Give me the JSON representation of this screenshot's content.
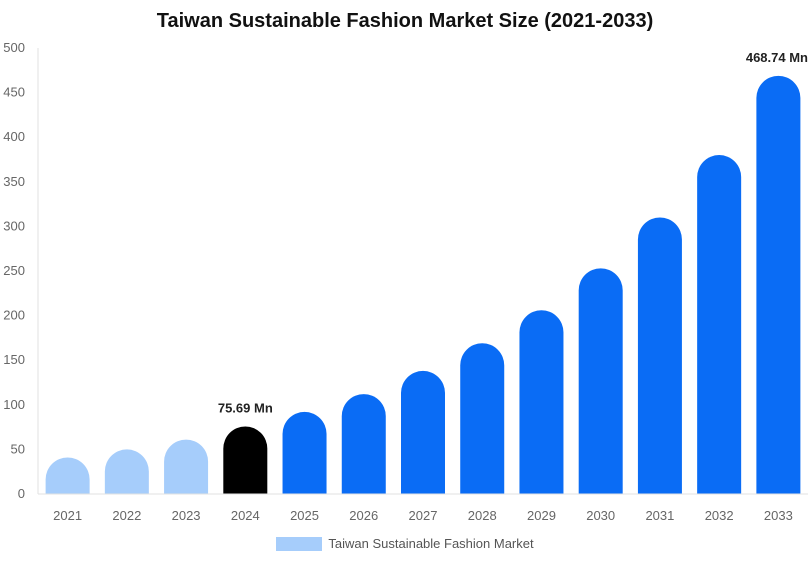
{
  "chart_data": {
    "type": "bar",
    "title": "Taiwan Sustainable Fashion Market Size (2021-2033)",
    "categories": [
      "2021",
      "2022",
      "2023",
      "2024",
      "2025",
      "2026",
      "2027",
      "2028",
      "2029",
      "2030",
      "2031",
      "2032",
      "2033"
    ],
    "series": [
      {
        "name": "Taiwan Sustainable Fashion Market",
        "values": [
          41,
          50,
          61,
          75.69,
          92,
          112,
          138,
          169,
          206,
          253,
          310,
          380,
          468.74
        ]
      }
    ],
    "ylim": [
      0,
      500
    ],
    "yticks": [
      0,
      50,
      100,
      150,
      200,
      250,
      300,
      350,
      400,
      450,
      500
    ],
    "data_labels": [
      {
        "category": "2024",
        "text": "75.69 Mn"
      },
      {
        "category": "2033",
        "text": "468.74 Mn"
      }
    ],
    "bar_colors": {
      "historical": "#a6cdfb",
      "current": "#000000",
      "forecast": "#0a6cf5"
    },
    "bar_color_groups": [
      "historical",
      "historical",
      "historical",
      "current",
      "forecast",
      "forecast",
      "forecast",
      "forecast",
      "forecast",
      "forecast",
      "forecast",
      "forecast",
      "forecast"
    ],
    "grid": false,
    "legend_position": "bottom"
  }
}
